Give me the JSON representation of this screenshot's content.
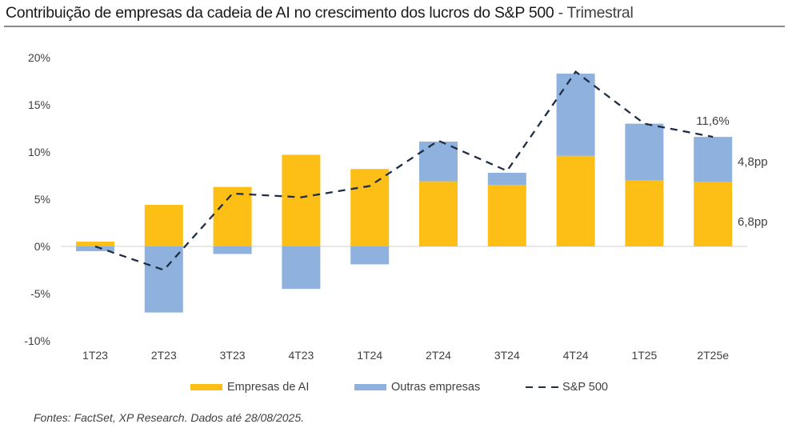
{
  "title": {
    "main": "Contribuição de empresas da cadeia de AI no crescimento dos lucros do S&P 500",
    "separator": " - ",
    "sub": "Trimestral"
  },
  "colors": {
    "ai": "#FDBF16",
    "others": "#8EB1DD",
    "sp500": "#1F2D45",
    "zero_line": "#D9D9D9"
  },
  "chart_data": {
    "type": "bar",
    "stacked": true,
    "title": "Contribuição de empresas da cadeia de AI no crescimento dos lucros do S&P 500 - Trimestral",
    "xlabel": "",
    "ylabel": "",
    "ylim": [
      -10,
      20
    ],
    "yticks": [
      20,
      15,
      10,
      5,
      0,
      -5,
      -10
    ],
    "ytick_labels": [
      "20%",
      "15%",
      "10%",
      "5%",
      "0%",
      "-5%",
      "-10%"
    ],
    "categories": [
      "1T23",
      "2T23",
      "3T23",
      "4T23",
      "1T24",
      "2T24",
      "3T24",
      "4T24",
      "1T25",
      "2T25e"
    ],
    "series": [
      {
        "name": "Empresas de AI",
        "type": "bar",
        "values": [
          0.5,
          4.4,
          6.3,
          9.7,
          8.2,
          6.9,
          6.5,
          9.6,
          7.0,
          6.8
        ]
      },
      {
        "name": "Outras empresas",
        "type": "bar",
        "values": [
          -0.5,
          -7.0,
          -0.8,
          -4.5,
          -1.9,
          4.2,
          1.3,
          8.7,
          6.0,
          4.8
        ]
      },
      {
        "name": "S&P 500",
        "type": "line",
        "style": "dashed",
        "values": [
          0.0,
          -2.5,
          5.6,
          5.2,
          6.4,
          11.2,
          8.0,
          18.5,
          13.0,
          11.6
        ]
      }
    ],
    "annotations": [
      {
        "text": "11,6%",
        "target": "S&P 500 2T25e"
      },
      {
        "text": "4,8pp",
        "target": "Outras empresas 2T25e"
      },
      {
        "text": "6,8pp",
        "target": "Empresas de AI 2T25e"
      }
    ],
    "legend_position": "bottom",
    "grid": false
  },
  "legend": {
    "ai": "Empresas de AI",
    "others": "Outras empresas",
    "sp500": "S&P 500"
  },
  "footer": "Fontes: FactSet, XP Research. Dados até 28/08/2025."
}
